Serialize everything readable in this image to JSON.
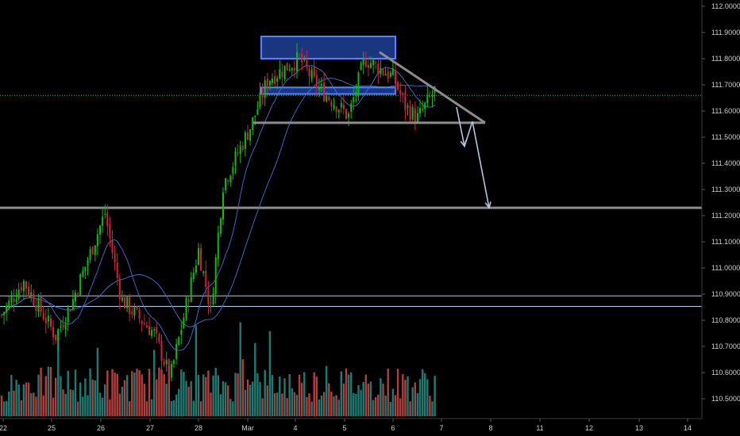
{
  "chart_data": {
    "type": "candlestick",
    "title": "",
    "xlabel": "",
    "ylabel": "",
    "ylim": [
      110.44,
      112.0
    ],
    "y_ticks": [
      "112.0000",
      "111.9000",
      "111.8000",
      "111.7000",
      "111.6000",
      "111.5000",
      "111.4000",
      "111.3000",
      "111.2000",
      "111.1000",
      "111.0000",
      "110.9000",
      "110.8000",
      "110.7000",
      "110.6000",
      "110.5000"
    ],
    "x_ticks": [
      "22",
      "25",
      "26",
      "27",
      "28",
      "Mar",
      "4",
      "5",
      "6",
      "7",
      "8",
      "11",
      "12",
      "13",
      "14"
    ],
    "grid": false,
    "legend": "none",
    "colors": {
      "background": "#000000",
      "up": "#00c400",
      "down": "#d4213b",
      "volume_up": "#26a69a",
      "volume_down": "#ef5350",
      "ma": "#4a6fd8",
      "zone_fill": "#1f3f98",
      "zone_border": "#4d86ff",
      "support": "#8c8c8c",
      "level": "#9fd3e8",
      "green_level": "#26c926",
      "arrow": "#b8c2e0",
      "axis_text": "#cfcfcf"
    },
    "horizontal_levels": [
      {
        "name": "",
        "value": 111.66,
        "style": "dotted-green"
      },
      {
        "name": "",
        "value": 111.23,
        "style": "gray-thick"
      },
      {
        "name": "",
        "value": 110.893,
        "style": "thin-light"
      },
      {
        "name": "",
        "value": 110.853,
        "style": "thin-light"
      }
    ],
    "zones": [
      {
        "x_from": "Mar",
        "x_to": "6",
        "y_from": 111.8,
        "y_to": 111.885
      },
      {
        "x_from": "Mar",
        "x_to": "6",
        "y_from": 111.665,
        "y_to": 111.69
      }
    ],
    "support_line": {
      "y": 111.555,
      "x_from": "Mar",
      "x_to": "8"
    },
    "descending_line": {
      "from": {
        "x": "6",
        "y": 111.825
      },
      "to": {
        "x": "8",
        "y": 111.555
      }
    },
    "projection_arrows": [
      {
        "from": {
          "x": "7",
          "y": 111.615
        },
        "to": {
          "x": "7",
          "y": 111.465
        }
      },
      {
        "from": {
          "x": "7",
          "y": 111.465
        },
        "to": {
          "x": "7",
          "y": 111.56
        }
      },
      {
        "from": {
          "x": "7",
          "y": 111.56
        },
        "to": {
          "x": "8",
          "y": 111.23
        }
      }
    ],
    "price_anchors": [
      {
        "x": "22",
        "y": 110.82
      },
      {
        "x": "22",
        "y": 110.95
      },
      {
        "x": "25",
        "y": 110.74
      },
      {
        "x": "25",
        "y": 110.87
      },
      {
        "x": "26",
        "y": 111.21
      },
      {
        "x": "26",
        "y": 110.88
      },
      {
        "x": "27",
        "y": 110.75
      },
      {
        "x": "27",
        "y": 110.58
      },
      {
        "x": "28",
        "y": 111.07
      },
      {
        "x": "28",
        "y": 110.84
      },
      {
        "x": "28",
        "y": 111.32
      },
      {
        "x": "Mar",
        "y": 111.55
      },
      {
        "x": "Mar",
        "y": 111.72
      },
      {
        "x": "4",
        "y": 111.8
      },
      {
        "x": "4",
        "y": 111.7
      },
      {
        "x": "5",
        "y": 111.58
      },
      {
        "x": "5",
        "y": 111.8
      },
      {
        "x": "6",
        "y": 111.73
      },
      {
        "x": "6",
        "y": 111.62
      },
      {
        "x": "6",
        "y": 111.57
      },
      {
        "x": "7",
        "y": 111.68
      }
    ]
  }
}
